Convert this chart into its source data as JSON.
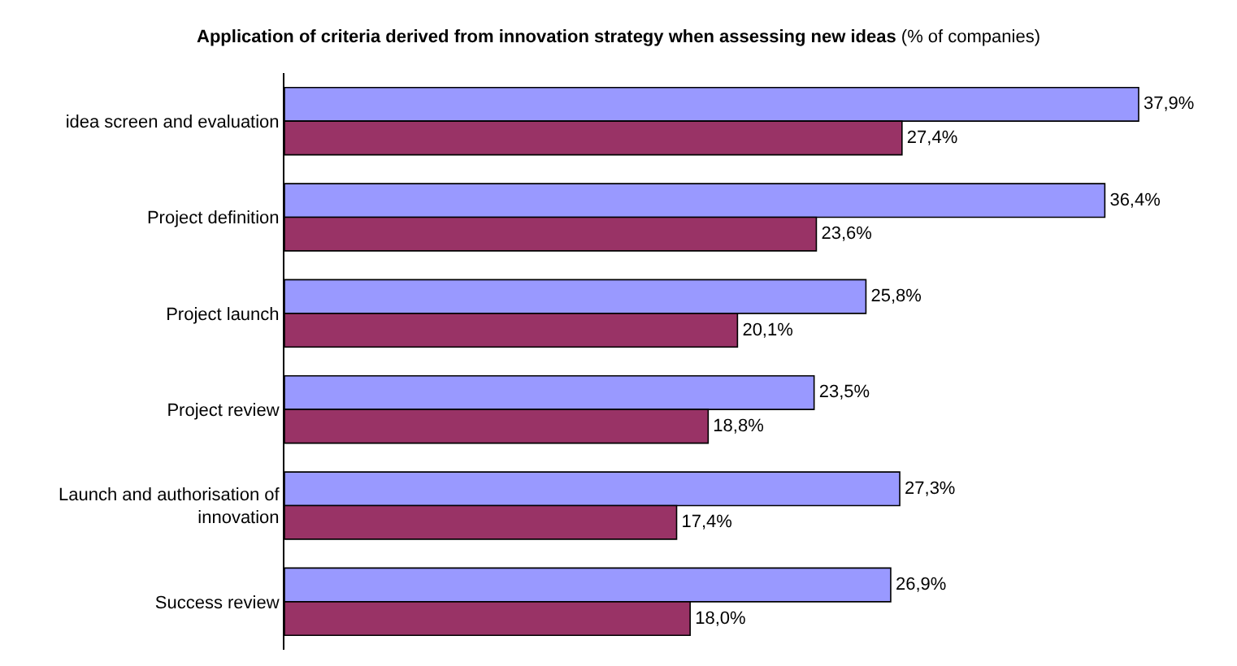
{
  "chart_data": {
    "type": "bar",
    "orientation": "horizontal",
    "title": "Application of criteria derived from innovation strategy when assessing new ideas",
    "subtitle": "(% of companies)",
    "categories": [
      "idea screen and evaluation",
      "Project definition",
      "Project launch",
      "Project review",
      "Launch and authorisation of\ninnovation",
      "Success review"
    ],
    "series": [
      {
        "color": "#9999ff",
        "values": [
          37.9,
          36.4,
          25.8,
          23.5,
          27.3,
          26.9
        ],
        "value_labels": [
          "37,9%",
          "36,4%",
          "25,8%",
          "23,5%",
          "27,3%",
          "26,9%"
        ]
      },
      {
        "color": "#993366",
        "values": [
          27.4,
          23.6,
          20.1,
          18.8,
          17.4,
          18.0
        ],
        "value_labels": [
          "27,4%",
          "23,6%",
          "20,1%",
          "18,8%",
          "17,4%",
          "18,0%"
        ]
      }
    ],
    "tick_labels": "y"
  }
}
